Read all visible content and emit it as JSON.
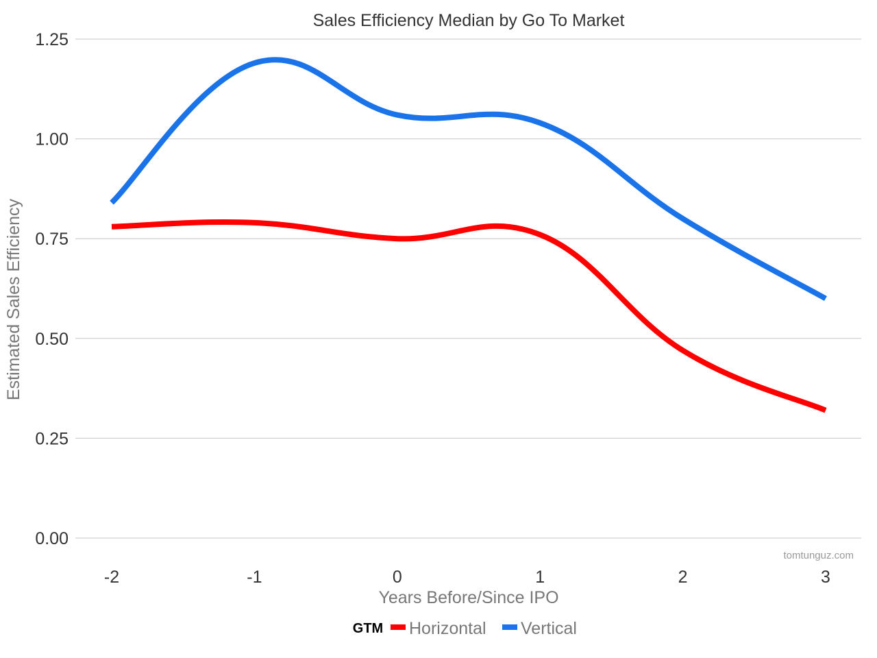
{
  "chart_data": {
    "type": "line",
    "title": "Sales Efficiency Median by Go To Market",
    "xlabel": "Years Before/Since IPO",
    "ylabel": "Estimated Sales Efficiency",
    "x": [
      -2,
      -1,
      0,
      1,
      2,
      3
    ],
    "x_tick_labels": [
      "-2",
      "-1",
      "0",
      "1",
      "2",
      "3"
    ],
    "y_ticks": [
      0,
      0.25,
      0.5,
      0.75,
      1.0,
      1.25
    ],
    "y_tick_labels": [
      "0.00",
      "0.25",
      "0.50",
      "0.75",
      "1.00",
      "1.25"
    ],
    "ylim": [
      0,
      1.25
    ],
    "xlim": [
      -2,
      3
    ],
    "grid": true,
    "smooth": true,
    "series": [
      {
        "name": "Horizontal",
        "color": "#ff0000",
        "values": [
          0.78,
          0.79,
          0.75,
          0.76,
          0.47,
          0.32
        ]
      },
      {
        "name": "Vertical",
        "color": "#1a73e8",
        "values": [
          0.84,
          1.19,
          1.06,
          1.04,
          0.8,
          0.6
        ]
      }
    ],
    "legend": {
      "title": "GTM",
      "placement": "bottom"
    },
    "watermark": "tomtunguz.com"
  }
}
